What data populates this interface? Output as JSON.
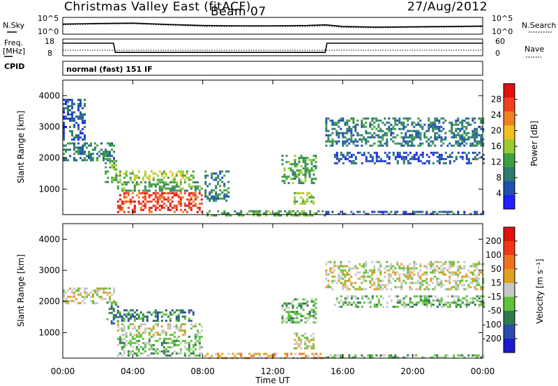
{
  "header": {
    "title": "Christmas Valley East (fitACF)",
    "beam": "Beam 07",
    "date": "27/Aug/2012"
  },
  "summary": {
    "nsky_label": "N.Sky",
    "nsearch_label": "N.Search",
    "freq_label": [
      "Freq.",
      "[MHz]"
    ],
    "nave_label": "Nave",
    "cpid_label": "CPID",
    "cpid_value": "normal (fast) 151 IF",
    "noise_ticks": [
      "10^5",
      "10^0"
    ],
    "freq_ticks": [
      "18",
      "8"
    ],
    "nave_ticks": [
      "60",
      "0"
    ]
  },
  "xaxis": {
    "label": "Time UT",
    "ticks": [
      "00:00",
      "04:00",
      "08:00",
      "12:00",
      "16:00",
      "20:00",
      "00:00"
    ]
  },
  "colors": {
    "power": [
      "#1f1fff",
      "#1f4fb0",
      "#2e7a6e",
      "#3fa040",
      "#9acd32",
      "#f0c020",
      "#f08020",
      "#f04020",
      "#e01010"
    ],
    "velocity": [
      "#1a1ad0",
      "#2a4cb0",
      "#2e7a4e",
      "#5ec23a",
      "#c8c8c8",
      "#e0a020",
      "#f07020",
      "#f03818",
      "#e01010"
    ]
  },
  "chart_data": [
    {
      "type": "line",
      "title": "N.Sky / N.Search",
      "x": [
        0,
        2,
        4,
        6,
        8,
        10,
        12,
        14,
        15,
        16,
        18,
        20,
        22,
        24
      ],
      "series": [
        {
          "name": "N.Sky",
          "values": [
            3.0,
            3.2,
            3.3,
            2.9,
            2.6,
            2.5,
            2.5,
            2.6,
            2.8,
            2.3,
            2.1,
            2.2,
            2.3,
            2.4
          ]
        },
        {
          "name": "N.Search",
          "values": [
            2.8,
            3.0,
            3.1,
            2.7,
            2.3,
            2.3,
            2.3,
            2.3,
            2.5,
            2.0,
            1.9,
            2.0,
            2.1,
            2.2
          ]
        }
      ],
      "ylim": [
        0,
        5
      ]
    },
    {
      "type": "line",
      "title": "Freq. / Nave",
      "x": [
        0,
        2.9,
        3.0,
        8.0,
        8.1,
        15.0,
        15.1,
        24
      ],
      "series": [
        {
          "name": "Freq.",
          "values": [
            15.5,
            15.5,
            10,
            10,
            10,
            10,
            15.5,
            15.5
          ]
        },
        {
          "name": "Nave",
          "values": [
            20,
            20,
            20,
            20,
            20,
            20,
            20,
            20
          ]
        }
      ],
      "ylim": [
        8,
        18
      ]
    },
    {
      "type": "heatmap",
      "title": "Power",
      "xlabel": "Time UT",
      "ylabel": "Slant Range [km]",
      "xlim": [
        0,
        24
      ],
      "ylim": [
        180,
        4500
      ],
      "yticks": [
        "1000",
        "2000",
        "3000",
        "4000"
      ],
      "colorbar_label": "Power [dB]",
      "colorbar_ticks": [
        "28",
        "24",
        "20",
        "16",
        "12",
        "8",
        "4"
      ],
      "regions": [
        {
          "t0": 0.0,
          "t1": 2.9,
          "r0": 1950,
          "r1": 2500,
          "level": 2
        },
        {
          "t0": 0.0,
          "t1": 1.2,
          "r0": 2600,
          "r1": 3900,
          "level": 1
        },
        {
          "t0": 2.4,
          "t1": 3.2,
          "r0": 1200,
          "r1": 2000,
          "level": 3
        },
        {
          "t0": 3.1,
          "t1": 7.5,
          "r0": 1300,
          "r1": 1600,
          "level": 4
        },
        {
          "t0": 3.1,
          "t1": 8.0,
          "r0": 950,
          "r1": 1250,
          "level": 3
        },
        {
          "t0": 3.1,
          "t1": 8.0,
          "r0": 250,
          "r1": 900,
          "level": 7
        },
        {
          "t0": 8.1,
          "t1": 9.5,
          "r0": 600,
          "r1": 1600,
          "level": 2
        },
        {
          "t0": 8.1,
          "t1": 15.0,
          "r0": 180,
          "r1": 320,
          "level": 3
        },
        {
          "t0": 12.5,
          "t1": 14.5,
          "r0": 1200,
          "r1": 2100,
          "level": 3
        },
        {
          "t0": 13.2,
          "t1": 14.3,
          "r0": 500,
          "r1": 900,
          "level": 4
        },
        {
          "t0": 15.0,
          "t1": 24.0,
          "r0": 2400,
          "r1": 3300,
          "level": 2
        },
        {
          "t0": 15.5,
          "t1": 24.0,
          "r0": 1800,
          "r1": 2200,
          "level": 1
        },
        {
          "t0": 15.0,
          "t1": 24.0,
          "r0": 180,
          "r1": 300,
          "level": 1
        }
      ]
    },
    {
      "type": "heatmap",
      "title": "Velocity",
      "xlabel": "Time UT",
      "ylabel": "Slant Range [km]",
      "xlim": [
        0,
        24
      ],
      "ylim": [
        180,
        4500
      ],
      "yticks": [
        "1000",
        "2000",
        "3000",
        "4000"
      ],
      "colorbar_label": "Velocity [m s⁻¹]",
      "colorbar_ticks": [
        "200",
        "100",
        "50",
        "15",
        "-15",
        "-50",
        "-100",
        "-200"
      ],
      "regions": [
        {
          "t0": 0.0,
          "t1": 2.9,
          "r0": 1950,
          "r1": 2450,
          "level": 4
        },
        {
          "t0": 2.5,
          "t1": 3.2,
          "r0": 1300,
          "r1": 2000,
          "level": 2
        },
        {
          "t0": 3.1,
          "t1": 7.5,
          "r0": 1350,
          "r1": 1750,
          "level": 2
        },
        {
          "t0": 3.1,
          "t1": 8.0,
          "r0": 950,
          "r1": 1300,
          "level": 4
        },
        {
          "t0": 3.1,
          "t1": 8.0,
          "r0": 250,
          "r1": 900,
          "level": 3
        },
        {
          "t0": 8.1,
          "t1": 15.0,
          "r0": 180,
          "r1": 350,
          "level": 5
        },
        {
          "t0": 12.5,
          "t1": 14.5,
          "r0": 1300,
          "r1": 2100,
          "level": 3
        },
        {
          "t0": 13.2,
          "t1": 14.3,
          "r0": 500,
          "r1": 1000,
          "level": 4
        },
        {
          "t0": 15.0,
          "t1": 24.0,
          "r0": 2400,
          "r1": 3300,
          "level": 4
        },
        {
          "t0": 15.5,
          "t1": 24.0,
          "r0": 1800,
          "r1": 2200,
          "level": 3
        },
        {
          "t0": 15.0,
          "t1": 24.0,
          "r0": 180,
          "r1": 300,
          "level": 3
        }
      ]
    }
  ]
}
